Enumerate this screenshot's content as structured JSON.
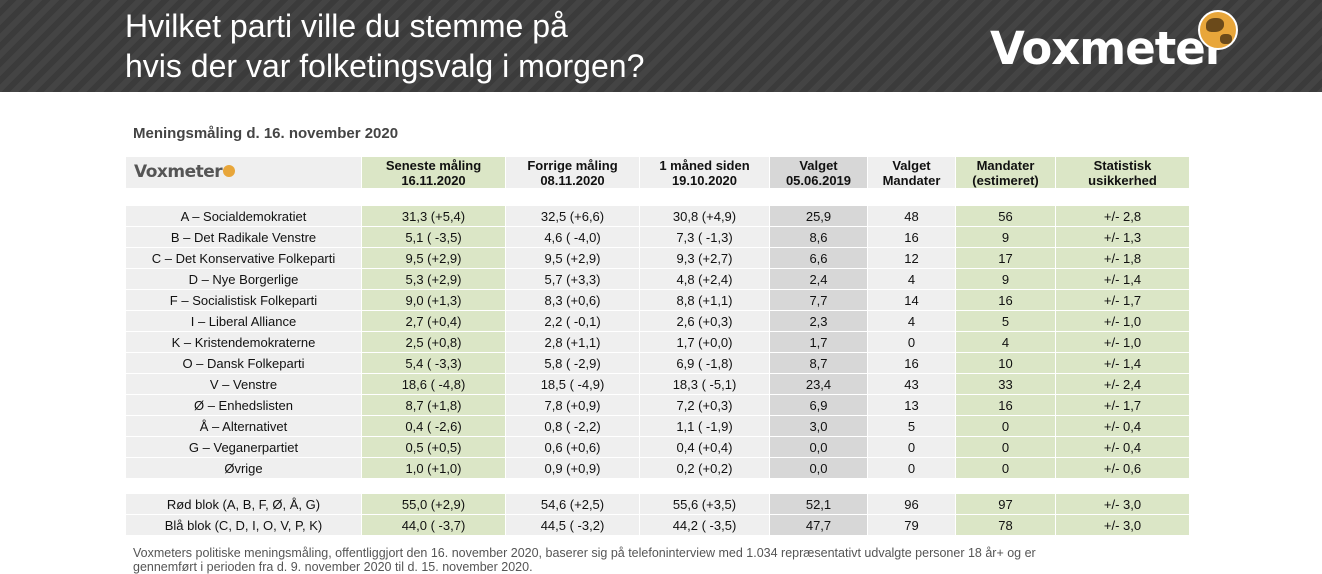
{
  "header": {
    "title_line1": "Hvilket parti ville du stemme på",
    "title_line2": "hvis der var folketingsvalg i morgen?",
    "brand": "Voxmeter"
  },
  "subtitle": "Meningsmåling d. 16. november 2020",
  "table": {
    "logo": "Voxmeter",
    "columns": [
      {
        "line1": "Seneste måling",
        "line2": "16.11.2020"
      },
      {
        "line1": "Forrige måling",
        "line2": "08.11.2020"
      },
      {
        "line1": "1 måned siden",
        "line2": "19.10.2020"
      },
      {
        "line1": "Valget",
        "line2": "05.06.2019"
      },
      {
        "line1": "Valget",
        "line2": "Mandater"
      },
      {
        "line1": "Mandater",
        "line2": "(estimeret)"
      },
      {
        "line1": "Statistisk",
        "line2": "usikkerhed"
      }
    ],
    "rows": [
      [
        "A – Socialdemokratiet",
        "31,3 (+5,4)",
        "32,5 (+6,6)",
        "30,8 (+4,9)",
        "25,9",
        "48",
        "56",
        "+/- 2,8"
      ],
      [
        "B – Det Radikale Venstre",
        "5,1 ( -3,5)",
        "4,6 ( -4,0)",
        "7,3 ( -1,3)",
        "8,6",
        "16",
        "9",
        "+/- 1,3"
      ],
      [
        "C – Det Konservative Folkeparti",
        "9,5 (+2,9)",
        "9,5 (+2,9)",
        "9,3 (+2,7)",
        "6,6",
        "12",
        "17",
        "+/- 1,8"
      ],
      [
        "D – Nye Borgerlige",
        "5,3 (+2,9)",
        "5,7 (+3,3)",
        "4,8 (+2,4)",
        "2,4",
        "4",
        "9",
        "+/- 1,4"
      ],
      [
        "F – Socialistisk Folkeparti",
        "9,0 (+1,3)",
        "8,3 (+0,6)",
        "8,8 (+1,1)",
        "7,7",
        "14",
        "16",
        "+/- 1,7"
      ],
      [
        "I – Liberal Alliance",
        "2,7 (+0,4)",
        "2,2 ( -0,1)",
        "2,6 (+0,3)",
        "2,3",
        "4",
        "5",
        "+/- 1,0"
      ],
      [
        "K – Kristendemokraterne",
        "2,5 (+0,8)",
        "2,8 (+1,1)",
        "1,7 (+0,0)",
        "1,7",
        "0",
        "4",
        "+/- 1,0"
      ],
      [
        "O – Dansk Folkeparti",
        "5,4 ( -3,3)",
        "5,8 ( -2,9)",
        "6,9 ( -1,8)",
        "8,7",
        "16",
        "10",
        "+/- 1,4"
      ],
      [
        "V – Venstre",
        "18,6 ( -4,8)",
        "18,5 ( -4,9)",
        "18,3 ( -5,1)",
        "23,4",
        "43",
        "33",
        "+/- 2,4"
      ],
      [
        "Ø – Enhedslisten",
        "8,7 (+1,8)",
        "7,8 (+0,9)",
        "7,2 (+0,3)",
        "6,9",
        "13",
        "16",
        "+/- 1,7"
      ],
      [
        "Å – Alternativet",
        "0,4 ( -2,6)",
        "0,8 ( -2,2)",
        "1,1 ( -1,9)",
        "3,0",
        "5",
        "0",
        "+/- 0,4"
      ],
      [
        "G – Veganerpartiet",
        "0,5 (+0,5)",
        "0,6 (+0,6)",
        "0,4 (+0,4)",
        "0,0",
        "0",
        "0",
        "+/- 0,4"
      ],
      [
        "Øvrige",
        "1,0 (+1,0)",
        "0,9 (+0,9)",
        "0,2 (+0,2)",
        "0,0",
        "0",
        "0",
        "+/- 0,6"
      ]
    ],
    "blocks": [
      [
        "Rød blok (A, B, F, Ø, Å, G)",
        "55,0 (+2,9)",
        "54,6 (+2,5)",
        "55,6 (+3,5)",
        "52,1",
        "96",
        "97",
        "+/- 3,0"
      ],
      [
        "Blå blok (C, D, I, O, V, P, K)",
        "44,0 ( -3,7)",
        "44,5 ( -3,2)",
        "44,2 ( -3,5)",
        "47,7",
        "79",
        "78",
        "+/- 3,0"
      ]
    ]
  },
  "footnote": {
    "line1": "Voxmeters politiske meningsmåling, offentliggjort den 16. november 2020, baserer sig på telefoninterview med 1.034 repræsentativt udvalgte personer 18 år+ og er",
    "line2": "gennemført i perioden fra d. 9. november 2020 til d. 15. november 2020."
  }
}
